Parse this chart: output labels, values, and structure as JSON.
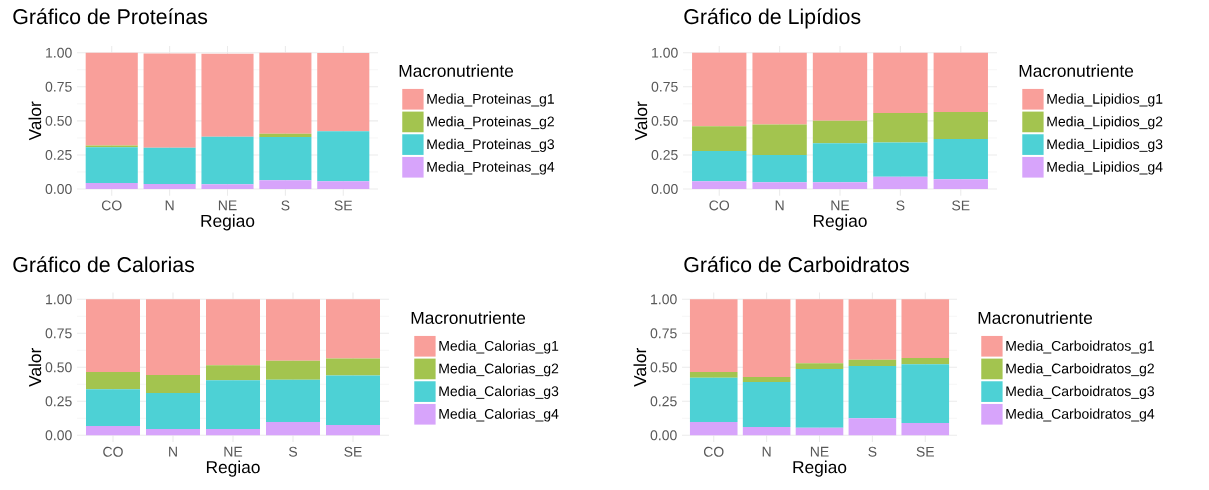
{
  "chart_data": [
    {
      "type": "bar",
      "title": "Gráfico de Proteínas",
      "xlabel": "Regiao",
      "ylabel": "Valor",
      "legend_title": "Macronutriente",
      "categories": [
        "CO",
        "N",
        "NE",
        "S",
        "SE"
      ],
      "stacked": true,
      "legend": "right",
      "grid": true,
      "ylim": [
        -0.05,
        1.05
      ],
      "yticks": [
        {
          "value": 0,
          "label": "0.00"
        },
        {
          "value": 0.25,
          "label": "0.25"
        },
        {
          "value": 0.5,
          "label": "0.50"
        },
        {
          "value": 0.75,
          "label": "0.75"
        },
        {
          "value": 1,
          "label": "1.00"
        }
      ],
      "series": [
        {
          "name": "Media_Proteinas_g4",
          "color": "#d7a4fb",
          "values": [
            0.044,
            0.037,
            0.034,
            0.064,
            0.056
          ]
        },
        {
          "name": "Media_Proteinas_g3",
          "color": "#4dd1d5",
          "values": [
            0.262,
            0.266,
            0.35,
            0.317,
            0.367
          ]
        },
        {
          "name": "Media_Proteinas_g2",
          "color": "#a3c44f",
          "values": [
            0.014,
            null,
            null,
            0.025,
            null
          ]
        },
        {
          "name": "Media_Proteinas_g1",
          "color": "#f99f9a",
          "values": [
            0.68,
            0.692,
            0.609,
            0.594,
            0.575
          ]
        }
      ]
    },
    {
      "type": "bar",
      "title": "Gráfico de Lipídios",
      "xlabel": "Regiao",
      "ylabel": "Valor",
      "legend_title": "Macronutriente",
      "categories": [
        "CO",
        "N",
        "NE",
        "S",
        "SE"
      ],
      "stacked": true,
      "legend": "right",
      "grid": true,
      "ylim": [
        -0.05,
        1.05
      ],
      "yticks": [
        {
          "value": 0,
          "label": "0.00"
        },
        {
          "value": 0.25,
          "label": "0.25"
        },
        {
          "value": 0.5,
          "label": "0.50"
        },
        {
          "value": 0.75,
          "label": "0.75"
        },
        {
          "value": 1,
          "label": "1.00"
        }
      ],
      "series": [
        {
          "name": "Media_Lipidios_g4",
          "color": "#d7a4fb",
          "values": [
            0.056,
            0.049,
            0.049,
            0.09,
            0.071
          ]
        },
        {
          "name": "Media_Lipidios_g3",
          "color": "#4dd1d5",
          "values": [
            0.223,
            0.2,
            0.286,
            0.252,
            0.296
          ]
        },
        {
          "name": "Media_Lipidios_g2",
          "color": "#a3c44f",
          "values": [
            0.181,
            0.225,
            0.166,
            0.215,
            0.198
          ]
        },
        {
          "name": "Media_Lipidios_g1",
          "color": "#f99f9a",
          "values": [
            0.54,
            0.526,
            0.499,
            0.443,
            0.435
          ]
        }
      ]
    },
    {
      "type": "bar",
      "title": "Gráfico de Calorias",
      "xlabel": "Regiao",
      "ylabel": "Valor",
      "legend_title": "Macronutriente",
      "categories": [
        "CO",
        "N",
        "NE",
        "S",
        "SE"
      ],
      "stacked": true,
      "legend": "right",
      "grid": true,
      "ylim": [
        -0.05,
        1.05
      ],
      "yticks": [
        {
          "value": 0,
          "label": "0.00"
        },
        {
          "value": 0.25,
          "label": "0.25"
        },
        {
          "value": 0.5,
          "label": "0.50"
        },
        {
          "value": 0.75,
          "label": "0.75"
        },
        {
          "value": 1,
          "label": "1.00"
        }
      ],
      "series": [
        {
          "name": "Media_Calorias_g4",
          "color": "#d7a4fb",
          "values": [
            0.069,
            0.047,
            0.047,
            0.098,
            0.076
          ]
        },
        {
          "name": "Media_Calorias_g3",
          "color": "#4dd1d5",
          "values": [
            0.269,
            0.264,
            0.357,
            0.311,
            0.363
          ]
        },
        {
          "name": "Media_Calorias_g2",
          "color": "#a3c44f",
          "values": [
            0.128,
            0.133,
            0.111,
            0.14,
            0.125
          ]
        },
        {
          "name": "Media_Calorias_g1",
          "color": "#f99f9a",
          "values": [
            0.534,
            0.556,
            0.485,
            0.451,
            0.436
          ]
        }
      ]
    },
    {
      "type": "bar",
      "title": "Gráfico de Carboidratos",
      "xlabel": "Regiao",
      "ylabel": "Valor",
      "legend_title": "Macronutriente",
      "categories": [
        "CO",
        "N",
        "NE",
        "S",
        "SE"
      ],
      "stacked": true,
      "legend": "right",
      "grid": true,
      "ylim": [
        -0.05,
        1.05
      ],
      "yticks": [
        {
          "value": 0,
          "label": "0.00"
        },
        {
          "value": 0.25,
          "label": "0.25"
        },
        {
          "value": 0.5,
          "label": "0.50"
        },
        {
          "value": 0.75,
          "label": "0.75"
        },
        {
          "value": 1,
          "label": "1.00"
        }
      ],
      "series": [
        {
          "name": "Media_Carboidratos_g4",
          "color": "#d7a4fb",
          "values": [
            0.098,
            0.061,
            0.056,
            0.125,
            0.091
          ]
        },
        {
          "name": "Media_Carboidratos_g3",
          "color": "#4dd1d5",
          "values": [
            0.326,
            0.331,
            0.432,
            0.385,
            0.431
          ]
        },
        {
          "name": "Media_Carboidratos_g2",
          "color": "#a3c44f",
          "values": [
            0.042,
            0.037,
            0.041,
            0.046,
            0.047
          ]
        },
        {
          "name": "Media_Carboidratos_g1",
          "color": "#f99f9a",
          "values": [
            0.534,
            0.571,
            0.471,
            0.444,
            0.431
          ]
        }
      ]
    }
  ]
}
